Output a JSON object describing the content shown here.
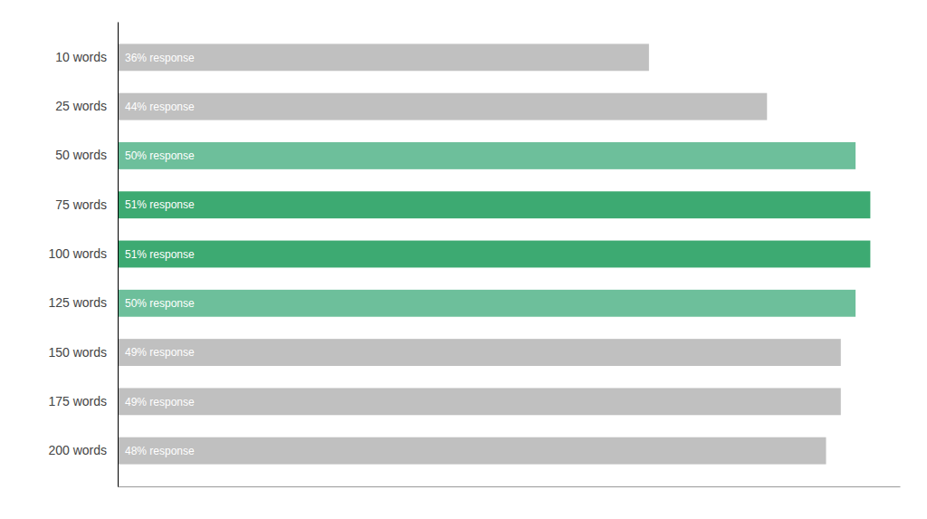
{
  "chart_data": {
    "type": "bar",
    "orientation": "horizontal",
    "categories": [
      "10 words",
      "25 words",
      "50 words",
      "75 words",
      "100 words",
      "125 words",
      "150 words",
      "175 words",
      "200 words"
    ],
    "values": [
      36,
      44,
      50,
      51,
      51,
      50,
      49,
      49,
      48
    ],
    "value_labels": [
      "36% response",
      "44% response",
      "50% response",
      "51% response",
      "51% response",
      "50% response",
      "49% response",
      "49% response",
      "48% response"
    ],
    "data_labels": true,
    "colors": [
      "#c0c0c0",
      "#c0c0c0",
      "#6dbf9b",
      "#3daa72",
      "#3daa72",
      "#6dbf9b",
      "#c0c0c0",
      "#c0c0c0",
      "#c0c0c0"
    ],
    "xlim": [
      0,
      53
    ],
    "tick_labels": "y",
    "grid": false
  }
}
